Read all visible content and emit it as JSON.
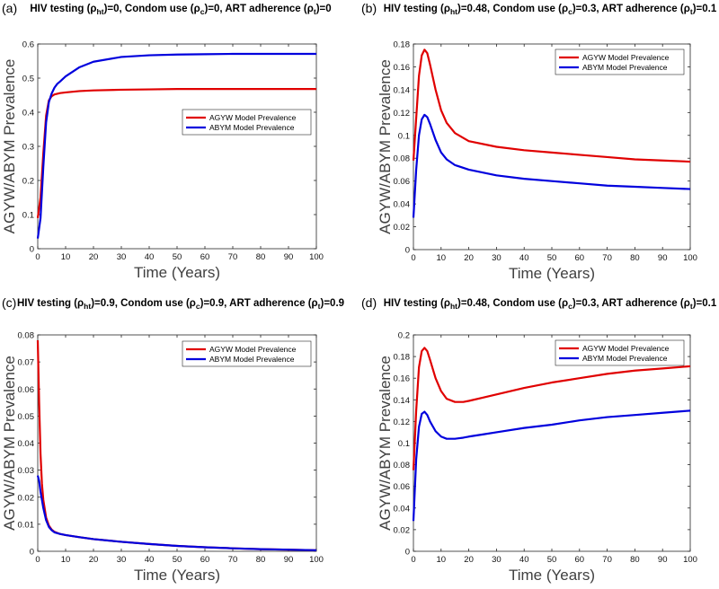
{
  "chart_data": [
    {
      "type": "line",
      "panel_label": "(a)",
      "title": {
        "prefix": "HIV testing (",
        "ht_sub": "ht",
        "mid1": ")=0, Condom use (",
        "c_sub": "c",
        "mid2": ")=0, ART adherence (",
        "t_sub": "t",
        "suffix": ")=0"
      },
      "xlabel": "Time (Years)",
      "ylabel": "AGYW/ABYM Prevalence",
      "xlim": [
        0,
        100
      ],
      "ylim": [
        0,
        0.6
      ],
      "xticks": [
        0,
        10,
        20,
        30,
        40,
        50,
        60,
        70,
        80,
        90,
        100
      ],
      "yticks": [
        0,
        0.1,
        0.2,
        0.3,
        0.4,
        0.5,
        0.6
      ],
      "ytick_labels": [
        "0",
        "0.1",
        "0.2",
        "0.3",
        "0.4",
        "0.5",
        "0.6"
      ],
      "legend_position": "center-right",
      "series": [
        {
          "name": "AGYW Model Prevalence",
          "color": "#e00000",
          "x": [
            0,
            1,
            2,
            3,
            4,
            5,
            6,
            8,
            10,
            15,
            20,
            30,
            40,
            50,
            60,
            70,
            80,
            90,
            100
          ],
          "y": [
            0.09,
            0.15,
            0.28,
            0.39,
            0.435,
            0.447,
            0.452,
            0.456,
            0.458,
            0.462,
            0.464,
            0.466,
            0.467,
            0.468,
            0.468,
            0.468,
            0.468,
            0.468,
            0.468
          ]
        },
        {
          "name": "ABYM Model Prevalence",
          "color": "#0000dd",
          "x": [
            0,
            1,
            2,
            3,
            4,
            5,
            6,
            7,
            8,
            10,
            15,
            20,
            30,
            40,
            50,
            60,
            70,
            80,
            90,
            100
          ],
          "y": [
            0.03,
            0.09,
            0.24,
            0.37,
            0.43,
            0.455,
            0.472,
            0.483,
            0.49,
            0.505,
            0.532,
            0.548,
            0.562,
            0.567,
            0.569,
            0.57,
            0.571,
            0.571,
            0.571,
            0.571
          ]
        }
      ]
    },
    {
      "type": "line",
      "panel_label": "(b)",
      "title": {
        "prefix": "HIV testing (",
        "ht_sub": "ht",
        "mid1": ")=0.48, Condom use (",
        "c_sub": "c",
        "mid2": ")=0.3, ART adherence (",
        "t_sub": "t",
        "suffix": ")=0.1"
      },
      "xlabel": "Time (Years)",
      "ylabel": "AGYW/ABYM Prevalence",
      "xlim": [
        0,
        100
      ],
      "ylim": [
        0,
        0.18
      ],
      "xticks": [
        0,
        10,
        20,
        30,
        40,
        50,
        60,
        70,
        80,
        90,
        100
      ],
      "yticks": [
        0,
        0.02,
        0.04,
        0.06,
        0.08,
        0.1,
        0.12,
        0.14,
        0.16,
        0.18
      ],
      "ytick_labels": [
        "0",
        "0.02",
        "0.04",
        "0.06",
        "0.08",
        "0.1",
        "0.12",
        "0.14",
        "0.16",
        "0.18"
      ],
      "legend_position": "top-right",
      "series": [
        {
          "name": "AGYW Model Prevalence",
          "color": "#e00000",
          "x": [
            0,
            1,
            2,
            3,
            4,
            5,
            6,
            8,
            10,
            12,
            15,
            20,
            30,
            40,
            50,
            60,
            70,
            80,
            90,
            100
          ],
          "y": [
            0.078,
            0.115,
            0.152,
            0.17,
            0.175,
            0.172,
            0.162,
            0.14,
            0.122,
            0.111,
            0.102,
            0.095,
            0.09,
            0.087,
            0.085,
            0.083,
            0.081,
            0.079,
            0.078,
            0.077
          ]
        },
        {
          "name": "ABYM Model Prevalence",
          "color": "#0000dd",
          "x": [
            0,
            1,
            2,
            3,
            4,
            5,
            6,
            8,
            10,
            12,
            15,
            20,
            30,
            40,
            50,
            60,
            70,
            80,
            90,
            100
          ],
          "y": [
            0.028,
            0.07,
            0.1,
            0.114,
            0.118,
            0.116,
            0.11,
            0.096,
            0.085,
            0.079,
            0.074,
            0.07,
            0.065,
            0.062,
            0.06,
            0.058,
            0.056,
            0.055,
            0.054,
            0.053
          ]
        }
      ]
    },
    {
      "type": "line",
      "panel_label": "(c)",
      "title": {
        "prefix": "HIV testing (",
        "ht_sub": "ht",
        "mid1": ")=0.9, Condom use (",
        "c_sub": "c",
        "mid2": ")=0.9, ART adherence (",
        "t_sub": "t",
        "suffix": ")=0.9"
      },
      "xlabel": "Time (Years)",
      "ylabel": "AGYW/ABYM Prevalence",
      "xlim": [
        0,
        100
      ],
      "ylim": [
        0,
        0.08
      ],
      "xticks": [
        0,
        10,
        20,
        30,
        40,
        50,
        60,
        70,
        80,
        90,
        100
      ],
      "yticks": [
        0,
        0.01,
        0.02,
        0.03,
        0.04,
        0.05,
        0.06,
        0.07,
        0.08
      ],
      "ytick_labels": [
        "0",
        "0.01",
        "0.02",
        "0.03",
        "0.04",
        "0.05",
        "0.06",
        "0.07",
        "0.08"
      ],
      "legend_position": "top-right",
      "series": [
        {
          "name": "AGYW Model Prevalence",
          "color": "#e00000",
          "x": [
            0,
            0.5,
            1,
            1.5,
            2,
            3,
            4,
            5,
            6,
            8,
            10,
            15,
            20,
            30,
            40,
            50,
            60,
            70,
            80,
            90,
            100
          ],
          "y": [
            0.078,
            0.055,
            0.036,
            0.025,
            0.019,
            0.0125,
            0.0095,
            0.008,
            0.0072,
            0.0064,
            0.006,
            0.0052,
            0.0045,
            0.0035,
            0.0027,
            0.002,
            0.0015,
            0.0011,
            0.0008,
            0.0006,
            0.0004
          ]
        },
        {
          "name": "ABYM Model Prevalence",
          "color": "#0000dd",
          "x": [
            0,
            0.5,
            1,
            2,
            3,
            4,
            5,
            6,
            8,
            10,
            15,
            20,
            30,
            40,
            50,
            60,
            70,
            80,
            90,
            100
          ],
          "y": [
            0.028,
            0.026,
            0.022,
            0.016,
            0.0115,
            0.009,
            0.0078,
            0.007,
            0.0064,
            0.006,
            0.0052,
            0.0045,
            0.0035,
            0.0027,
            0.002,
            0.0015,
            0.0011,
            0.0008,
            0.0006,
            0.0004
          ]
        }
      ]
    },
    {
      "type": "line",
      "panel_label": "(d)",
      "title": {
        "prefix": "HIV testing (",
        "ht_sub": "ht",
        "mid1": ")=0.48, Condom use (",
        "c_sub": "c",
        "mid2": ")=0.3, ART adherence (",
        "t_sub": "t",
        "suffix": ")=0.1"
      },
      "xlabel": "Time (Years)",
      "ylabel": "AGYW/ABYM Prevalence",
      "xlim": [
        0,
        100
      ],
      "ylim": [
        0,
        0.2
      ],
      "xticks": [
        0,
        10,
        20,
        30,
        40,
        50,
        60,
        70,
        80,
        90,
        100
      ],
      "yticks": [
        0,
        0.02,
        0.04,
        0.06,
        0.08,
        0.1,
        0.12,
        0.14,
        0.16,
        0.18,
        0.2
      ],
      "ytick_labels": [
        "0",
        "0.02",
        "0.04",
        "0.06",
        "0.08",
        "0.1",
        "0.12",
        "0.14",
        "0.16",
        "0.18",
        "0.2"
      ],
      "legend_position": "top-right",
      "series": [
        {
          "name": "AGYW Model Prevalence",
          "color": "#e00000",
          "x": [
            0,
            1,
            2,
            3,
            4,
            5,
            6,
            8,
            10,
            12,
            15,
            18,
            20,
            25,
            30,
            40,
            50,
            60,
            70,
            80,
            90,
            100
          ],
          "y": [
            0.075,
            0.13,
            0.17,
            0.185,
            0.188,
            0.185,
            0.177,
            0.16,
            0.148,
            0.141,
            0.138,
            0.138,
            0.139,
            0.142,
            0.145,
            0.151,
            0.156,
            0.16,
            0.164,
            0.167,
            0.169,
            0.171
          ]
        },
        {
          "name": "ABYM Model Prevalence",
          "color": "#0000dd",
          "x": [
            0,
            1,
            2,
            3,
            4,
            5,
            6,
            8,
            10,
            12,
            15,
            18,
            20,
            25,
            30,
            40,
            50,
            60,
            70,
            80,
            90,
            100
          ],
          "y": [
            0.028,
            0.085,
            0.115,
            0.127,
            0.129,
            0.126,
            0.12,
            0.111,
            0.106,
            0.104,
            0.104,
            0.105,
            0.106,
            0.108,
            0.11,
            0.114,
            0.117,
            0.121,
            0.124,
            0.126,
            0.128,
            0.13
          ]
        }
      ]
    }
  ]
}
